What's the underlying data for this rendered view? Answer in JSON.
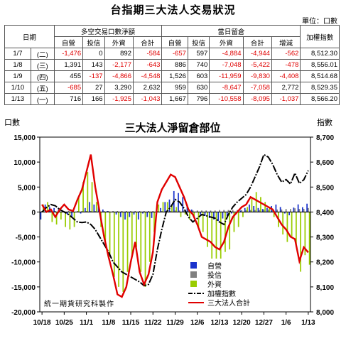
{
  "table": {
    "title": "台指期三大法人交易狀況",
    "unit": "單位：口數",
    "col_date": "日期",
    "group_net": "多空交易口數淨額",
    "group_oi": "當日留倉",
    "col_index": "加權指數",
    "sub_net": [
      "自營",
      "投信",
      "外資",
      "合計"
    ],
    "sub_oi": [
      "自營",
      "投信",
      "外資",
      "合計",
      "增減"
    ],
    "rows": [
      {
        "date": "1/7",
        "wd": "(二)",
        "net": [
          "-1,476",
          "0",
          "892",
          "-584"
        ],
        "oi": [
          "-657",
          "597",
          "-4,884",
          "-4,944",
          "-562"
        ],
        "index": "8,512.30"
      },
      {
        "date": "1/8",
        "wd": "(三)",
        "net": [
          "1,391",
          "143",
          "-2,177",
          "-643"
        ],
        "oi": [
          "886",
          "740",
          "-7,048",
          "-5,422",
          "-478"
        ],
        "index": "8,556.01"
      },
      {
        "date": "1/9",
        "wd": "(四)",
        "net": [
          "455",
          "-137",
          "-4,866",
          "-4,548"
        ],
        "oi": [
          "1,526",
          "603",
          "-11,959",
          "-9,830",
          "-4,408"
        ],
        "index": "8,514.68"
      },
      {
        "date": "1/10",
        "wd": "(五)",
        "net": [
          "-685",
          "27",
          "3,290",
          "2,632"
        ],
        "oi": [
          "959",
          "630",
          "-8,647",
          "-7,058",
          "2,772"
        ],
        "index": "8,529.35"
      },
      {
        "date": "1/13",
        "wd": "(一)",
        "net": [
          "716",
          "166",
          "-1,925",
          "-1,043"
        ],
        "oi": [
          "1,667",
          "796",
          "-10,558",
          "-8,095",
          "-1,037"
        ],
        "index": "8,566.20"
      }
    ]
  },
  "chart": {
    "title": "三大法人淨留倉部位",
    "left_axis_label": "口數",
    "right_axis_label": "指數",
    "watermark": "統一期貨研究科製作",
    "colors": {
      "prop": "#1a33cc",
      "trust": "#808080",
      "foreign": "#99cc00",
      "index": "#000000",
      "total": "#e00000"
    }
  },
  "chart_data": {
    "type": "bar",
    "title": "三大法人淨留倉部位",
    "ylabel": "口數",
    "y2label": "指數",
    "ylim": [
      -20000,
      15000
    ],
    "y2lim": [
      8000,
      8700
    ],
    "yticks": [
      "15,000",
      "10,000",
      "5,000",
      "0",
      "-5,000",
      "-10,000",
      "-15,000",
      "-20,000"
    ],
    "y2ticks": [
      "8,700",
      "8,600",
      "8,500",
      "8,400",
      "8,300",
      "8,200",
      "8,100",
      "8,000"
    ],
    "xtick_labels": [
      "10/18",
      "10/25",
      "11/1",
      "11/8",
      "11/15",
      "11/22",
      "11/29",
      "12/6",
      "12/13",
      "12/20",
      "12/27",
      "1/6",
      "1/13"
    ],
    "xtick_positions": [
      0,
      5,
      10,
      15,
      20,
      25,
      30,
      35,
      40,
      45,
      50,
      55,
      60
    ],
    "legend_position": "bottom-right",
    "series": [
      {
        "name": "自營",
        "kind": "bar",
        "values": [
          -1500,
          1500,
          1000,
          800,
          500,
          200,
          -500,
          -1000,
          0,
          -300,
          800,
          2000,
          1500,
          1000,
          500,
          200,
          0,
          -500,
          -1000,
          -1500,
          -1000,
          -500,
          -1500,
          -300,
          -1000,
          -1200,
          -200,
          800,
          2000,
          2500,
          4200,
          3800,
          3000,
          1500,
          500,
          0,
          -500,
          -800,
          -1200,
          -1500,
          -1800,
          -1300,
          -800,
          -300,
          0,
          300,
          800,
          1500,
          1200,
          800,
          600,
          800,
          1200,
          1500,
          1000,
          -300,
          -657,
          886,
          1526,
          959,
          1667
        ]
      },
      {
        "name": "投信",
        "kind": "bar",
        "values": [
          200,
          200,
          200,
          200,
          200,
          200,
          200,
          200,
          200,
          200,
          200,
          200,
          200,
          200,
          200,
          200,
          200,
          200,
          200,
          200,
          200,
          200,
          200,
          200,
          200,
          200,
          200,
          200,
          200,
          200,
          300,
          300,
          300,
          300,
          300,
          300,
          300,
          300,
          300,
          300,
          400,
          400,
          400,
          400,
          400,
          400,
          400,
          400,
          400,
          400,
          500,
          500,
          500,
          500,
          500,
          600,
          597,
          740,
          603,
          630,
          796
        ]
      },
      {
        "name": "外資",
        "kind": "bar",
        "values": [
          1500,
          2000,
          -2000,
          -2500,
          -1500,
          -3000,
          -3500,
          -3000,
          3000,
          6000,
          8000,
          6000,
          2000,
          -3000,
          -6000,
          -9000,
          -13000,
          -15000,
          -16000,
          -12000,
          -9000,
          -7000,
          -12000,
          -15000,
          -10000,
          -4000,
          1500,
          2000,
          2000,
          1500,
          1000,
          -1000,
          -500,
          -1500,
          -1000,
          -3000,
          -4000,
          -7000,
          -9500,
          -10000,
          -9500,
          -8000,
          -7500,
          -4000,
          -3000,
          -1000,
          1000,
          3000,
          4000,
          3000,
          2000,
          1000,
          -1000,
          -3000,
          -4500,
          -6000,
          -4884,
          -7048,
          -11959,
          -8647,
          -10558
        ]
      },
      {
        "name": "加權指數",
        "kind": "line",
        "axis": "right",
        "values": [
          8400,
          8418,
          8430,
          8425,
          8410,
          8400,
          8390,
          8375,
          8360,
          8358,
          8360,
          8350,
          8330,
          8300,
          8270,
          8240,
          8200,
          8180,
          8160,
          8150,
          8140,
          8130,
          8120,
          8105,
          8110,
          8150,
          8250,
          8330,
          8400,
          8420,
          8450,
          8440,
          8415,
          8380,
          8360,
          8375,
          8390,
          8385,
          8380,
          8375,
          8360,
          8350,
          8390,
          8420,
          8440,
          8455,
          8470,
          8500,
          8540,
          8580,
          8630,
          8620,
          8590,
          8550,
          8520,
          8530,
          8512.3,
          8556.01,
          8514.68,
          8529.35,
          8566.2
        ]
      },
      {
        "name": "三大法人合計",
        "kind": "line",
        "axis": "left",
        "values": [
          1500,
          0,
          500,
          -1000,
          500,
          1500,
          500,
          200,
          2500,
          4500,
          8000,
          11500,
          5000,
          0,
          -5000,
          -9000,
          -12500,
          -16500,
          -17000,
          -15000,
          -10000,
          -6000,
          -12000,
          -14500,
          -12500,
          -8000,
          2000,
          4500,
          6000,
          7500,
          7000,
          5000,
          3000,
          500,
          -500,
          -2500,
          -5000,
          -5500,
          -6000,
          -7000,
          -7500,
          -6000,
          -3000,
          -1000,
          0,
          1000,
          1500,
          3000,
          2500,
          2000,
          1500,
          1000,
          500,
          -1000,
          -2500,
          -3500,
          -4944,
          -5422,
          -9830,
          -7058,
          -8095
        ]
      }
    ]
  }
}
